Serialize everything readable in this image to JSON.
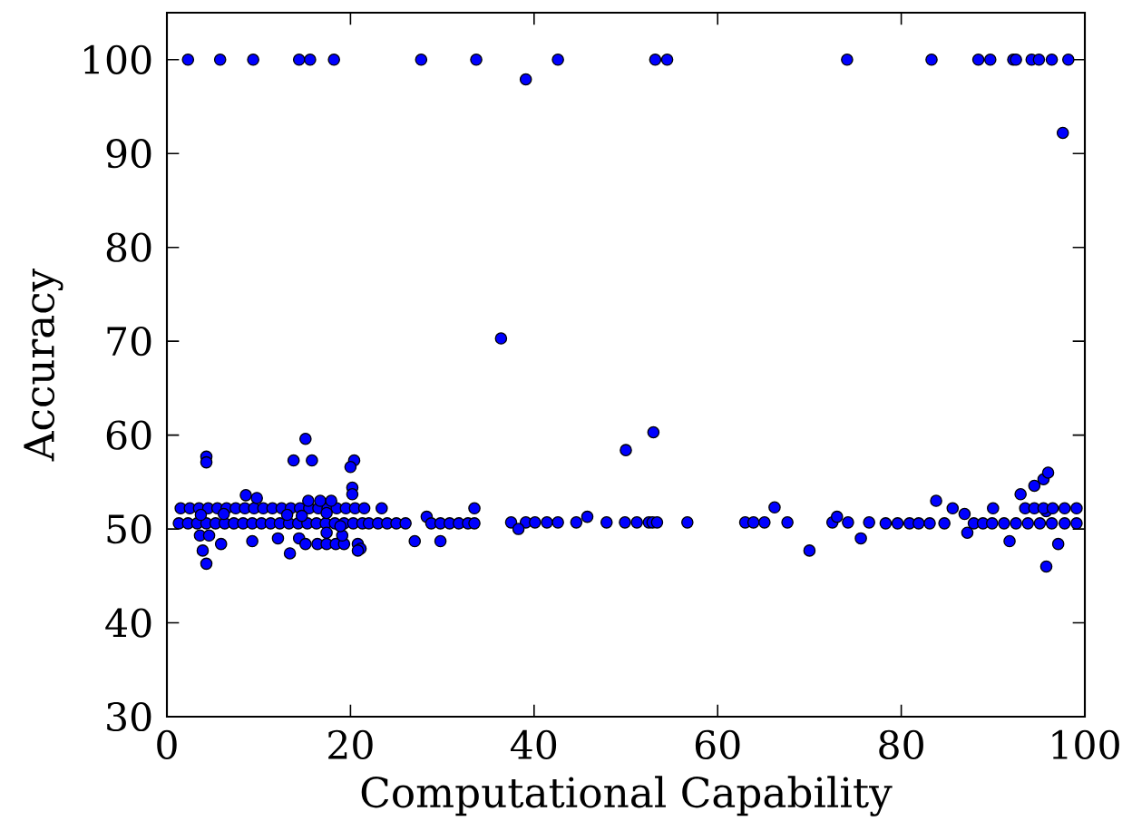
{
  "chart_data": {
    "type": "scatter",
    "xlabel": "Computational Capability",
    "ylabel": "Accuracy",
    "color": "#0000ff",
    "marker": "circle",
    "xlim": [
      0,
      100
    ],
    "ylim": [
      30,
      105
    ],
    "xticks": [
      0,
      20,
      40,
      60,
      80,
      100
    ],
    "yticks": [
      30,
      40,
      50,
      60,
      70,
      80,
      90,
      100
    ],
    "x": [
      2.3,
      5.8,
      9.4,
      14.4,
      15.6,
      18.2,
      27.7,
      33.7,
      39.1,
      42.6,
      53.2,
      54.5,
      74.1,
      83.3,
      88.4,
      89.7,
      92.2,
      92.5,
      94.2,
      95.0,
      96.4,
      98.2,
      97.6,
      36.4,
      37.5,
      39.1,
      40.1,
      41.4,
      42.6,
      44.6,
      47.9,
      49.9,
      51.2,
      52.5,
      52.9,
      53.4,
      56.7,
      63.0,
      63.9,
      65.1,
      67.6,
      72.5,
      74.2,
      76.5,
      38.3,
      45.8,
      66.2,
      70.0,
      73.0,
      75.6,
      50.0,
      53.0,
      78.3,
      79.6,
      80.9,
      81.9,
      83.1,
      84.7,
      87.9,
      88.9,
      89.9,
      91.2,
      92.5,
      93.8,
      95.1,
      96.4,
      97.8,
      99.1,
      83.8,
      85.6,
      86.9,
      87.2,
      90.0,
      91.8,
      93.0,
      94.5,
      95.5,
      96.0,
      95.8,
      95.8,
      97.1,
      93.5,
      94.5,
      95.5,
      96.5,
      97.8,
      99.1,
      1.3,
      2.3,
      3.3,
      4.3,
      5.3,
      6.3,
      7.3,
      8.3,
      9.3,
      10.3,
      11.3,
      12.3,
      13.3,
      14.3,
      15.3,
      16.3,
      17.3,
      18.3,
      19.3,
      20.3,
      21.3,
      22.0,
      1.5,
      2.5,
      3.5,
      4.5,
      5.5,
      6.5,
      7.5,
      8.5,
      9.5,
      10.5,
      11.5,
      12.5,
      13.5,
      14.5,
      15.5,
      16.5,
      17.5,
      18.5,
      19.5,
      20.5,
      21.5,
      4.3,
      4.3,
      15.1,
      13.8,
      15.8,
      20.4,
      20.0,
      20.2,
      20.2,
      8.6,
      9.8,
      15.4,
      16.7,
      17.9,
      17.4,
      3.7,
      6.2,
      13.1,
      14.7,
      3.6,
      4.6,
      3.9,
      4.3,
      5.9,
      9.3,
      12.1,
      13.4,
      14.4,
      15.1,
      16.4,
      17.4,
      18.4,
      19.3,
      17.4,
      19.1,
      20.8,
      21.1,
      20.8,
      18.9,
      23.0,
      24.0,
      25.0,
      26.0,
      27.0,
      28.3,
      28.8,
      29.8,
      30.8,
      31.8,
      32.8,
      33.5,
      29.8,
      33.5,
      23.4
    ],
    "values": [
      100,
      100,
      100,
      100,
      100,
      100,
      100,
      100,
      97.9,
      100,
      100,
      100,
      100,
      100,
      100,
      100,
      100,
      100,
      100,
      100,
      100,
      100,
      92.2,
      70.3,
      50.7,
      50.7,
      50.7,
      50.7,
      50.7,
      50.7,
      50.7,
      50.7,
      50.7,
      50.7,
      50.7,
      50.7,
      50.7,
      50.7,
      50.7,
      50.7,
      50.7,
      50.7,
      50.7,
      50.7,
      50.0,
      51.3,
      52.3,
      47.7,
      51.3,
      49.0,
      58.4,
      60.3,
      50.6,
      50.6,
      50.6,
      50.6,
      50.6,
      50.6,
      50.6,
      50.6,
      50.6,
      50.6,
      50.6,
      50.6,
      50.6,
      50.6,
      50.6,
      50.6,
      53.0,
      52.2,
      51.6,
      49.6,
      52.2,
      48.7,
      53.7,
      54.6,
      55.3,
      56.0,
      51.9,
      46.0,
      48.4,
      52.2,
      52.2,
      52.2,
      52.2,
      52.2,
      52.2,
      50.6,
      50.6,
      50.6,
      50.6,
      50.6,
      50.6,
      50.6,
      50.6,
      50.6,
      50.6,
      50.6,
      50.6,
      50.6,
      50.6,
      50.6,
      50.6,
      50.6,
      50.6,
      50.6,
      50.6,
      50.6,
      50.6,
      52.2,
      52.2,
      52.2,
      52.2,
      52.2,
      52.2,
      52.2,
      52.2,
      52.2,
      52.2,
      52.2,
      52.2,
      52.2,
      52.2,
      52.2,
      52.2,
      52.2,
      52.2,
      52.2,
      52.2,
      52.2,
      57.7,
      57.1,
      59.6,
      57.3,
      57.3,
      57.3,
      56.6,
      54.4,
      53.7,
      53.6,
      53.3,
      53.0,
      53.0,
      53.0,
      51.7,
      51.5,
      51.6,
      51.5,
      51.4,
      49.3,
      49.3,
      47.7,
      46.3,
      48.4,
      48.7,
      49.0,
      47.4,
      49.0,
      48.4,
      48.4,
      48.4,
      48.4,
      48.4,
      49.6,
      49.3,
      48.4,
      47.9,
      47.7,
      50.3,
      50.6,
      50.6,
      50.6,
      50.6,
      48.7,
      51.3,
      50.6,
      50.6,
      50.6,
      50.6,
      50.6,
      50.6,
      48.7,
      52.2,
      52.2
    ]
  }
}
